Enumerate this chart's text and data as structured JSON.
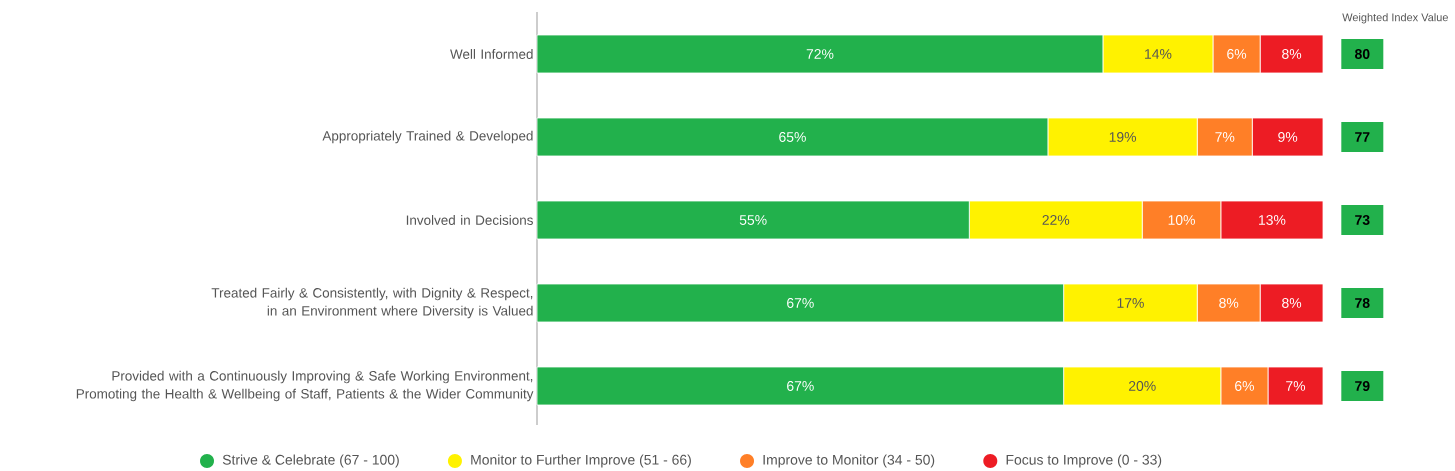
{
  "chart_data": {
    "type": "bar",
    "orientation": "horizontal",
    "stacked": true,
    "categories": [
      "Well Informed",
      "Appropriately Trained & Developed",
      "Involved in Decisions",
      "Treated Fairly & Consistently, with Dignity & Respect, in an Environment where Diversity is Valued",
      "Provided with a Continuously Improving & Safe Working Environment, Promoting the Health & Wellbeing of Staff, Patients & the Wider Community"
    ],
    "series": [
      {
        "name": "Strive & Celebrate (67 - 100)",
        "color": "#22b14c",
        "values": [
          72,
          65,
          55,
          67,
          67
        ],
        "value_labels": [
          "72%",
          "65%",
          "55%",
          "67%",
          "67%"
        ]
      },
      {
        "name": "Monitor to Further Improve (51 - 66)",
        "color": "#fff200",
        "values": [
          14,
          19,
          22,
          17,
          20
        ],
        "value_labels": [
          "14%",
          "19%",
          "22%",
          "17%",
          "20%"
        ]
      },
      {
        "name": "Improve to Monitor (34 - 50)",
        "color": "#ff7f27",
        "values": [
          6,
          7,
          10,
          8,
          6
        ],
        "value_labels": [
          "6%",
          "7%",
          "10%",
          "8%",
          "6%"
        ]
      },
      {
        "name": "Focus to Improve (0 - 33)",
        "color": "#ed1c24",
        "values": [
          8,
          9,
          13,
          8,
          7
        ],
        "value_labels": [
          "8%",
          "9%",
          "13%",
          "8%",
          "7%"
        ]
      }
    ],
    "xlim": [
      0,
      100
    ],
    "tick_labels": "y",
    "legend": "bottom",
    "marker": "circle",
    "annotations": [
      "Weighted Index Value",
      "80",
      "77",
      "73",
      "78",
      "79"
    ]
  }
}
